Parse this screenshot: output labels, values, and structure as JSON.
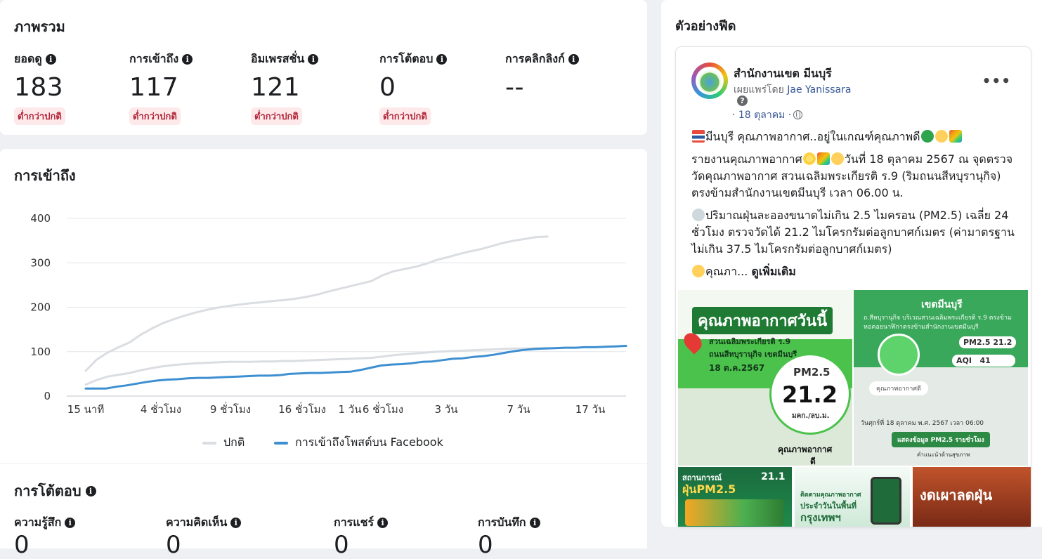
{
  "overview": {
    "title": "ภาพรวม",
    "metrics": [
      {
        "label": "ยอดดู",
        "value": "183",
        "status": "ต่ำกว่าปกติ"
      },
      {
        "label": "การเข้าถึง",
        "value": "117",
        "status": "ต่ำกว่าปกติ"
      },
      {
        "label": "อิมเพรสชั่น",
        "value": "121",
        "status": "ต่ำกว่าปกติ"
      },
      {
        "label": "การโต้ตอบ",
        "value": "0",
        "status": "ต่ำกว่าปกติ"
      },
      {
        "label": "การคลิกลิงก์",
        "value": "--",
        "status": ""
      }
    ]
  },
  "reach": {
    "title": "การเข้าถึง"
  },
  "chart_data": {
    "type": "line",
    "title": "",
    "xlabel": "",
    "ylabel": "",
    "ylim": [
      0,
      400
    ],
    "yticks": [
      0,
      100,
      200,
      300,
      400
    ],
    "x_tick_labels": [
      "15 นาที",
      "4 ชั่วโมง",
      "9 ชั่วโมง",
      "16 ชั่วโมง",
      "1 วัน",
      "6 ชั่วโมง",
      "3 วัน",
      "7 วัน",
      "17 วัน"
    ],
    "grid": true,
    "legend_position": "bottom-center",
    "series": [
      {
        "name": "ปกติ",
        "color": "#dadde1",
        "values": [
          57,
          82,
          98,
          110,
          121,
          138,
          152,
          164,
          173,
          181,
          188,
          194,
          199,
          203,
          206,
          209,
          211,
          214,
          216,
          219,
          223,
          228,
          235,
          241,
          247,
          253,
          259,
          272,
          281,
          286,
          291,
          298,
          307,
          313,
          320,
          326,
          331,
          338,
          345,
          350,
          354,
          358,
          359
        ]
      },
      {
        "name": "ปกติ",
        "color": "#dadde1",
        "values": [
          26,
          36,
          44,
          48,
          52,
          58,
          63,
          67,
          70,
          72,
          74,
          75,
          76,
          77,
          77,
          77,
          78,
          78,
          79,
          79,
          80,
          81,
          82,
          83,
          84,
          85,
          86,
          89,
          92,
          94,
          96,
          98,
          100,
          101,
          102,
          103,
          104,
          105,
          106,
          107,
          107,
          108,
          108
        ]
      },
      {
        "name": "การเข้าถึงโพสต์บน Facebook",
        "color": "#3d8fd1",
        "values": [
          17,
          17,
          17,
          21,
          24,
          28,
          32,
          35,
          37,
          38,
          40,
          41,
          41,
          42,
          43,
          44,
          45,
          46,
          46,
          47,
          50,
          51,
          52,
          52,
          53,
          54,
          55,
          59,
          64,
          69,
          71,
          72,
          74,
          77,
          78,
          81,
          84,
          85,
          88,
          90,
          93,
          97,
          101,
          104,
          106,
          107,
          108,
          109,
          109,
          110,
          110,
          111,
          112,
          113
        ]
      }
    ]
  },
  "legend": {
    "normal": "ปกติ",
    "facebook": "การเข้าถึงโพสต์บน Facebook"
  },
  "interactions": {
    "title": "การโต้ตอบ",
    "metrics": [
      {
        "label": "ความรู้สึก",
        "value": "0"
      },
      {
        "label": "ความคิดเห็น",
        "value": "0"
      },
      {
        "label": "การแชร์",
        "value": "0"
      },
      {
        "label": "การบันทึก",
        "value": "0"
      }
    ]
  },
  "feed": {
    "title": "ตัวอย่างฟีด",
    "page_name": "สำนักงานเขต มีนบุรี",
    "published_prefix": "เผยแพร่โดย",
    "published_by": "Jae Yanissara",
    "date": "· 18 ตุลาคม ·",
    "line1": "มีนบุรี คุณภาพอากาศ..อยู่ในเกณฑ์คุณภาพดี",
    "line2_a": "รายงานคุณภาพอากาศ",
    "line2_b": "วันที่ 18 ตุลาคม 2567 ณ จุดตรวจวัดคุณภาพอากาศ สวนเฉลิมพระเกียรติ ร.9 (ริมถนนสีหบุรานุกิจ) ตรงข้ามสำนักงานเขตมีนบุรี เวลา 06.00 น.",
    "line3": "ปริมาณฝุ่นละอองขนาดไม่เกิน 2.5 ไมครอน (PM2.5) เฉลี่ย 24 ชั่วโมง ตรวจวัดได้ 21.2 ไมโครกรัมต่อลูกบาศก์เมตร (ค่ามาตรฐานไม่เกิน 37.5 ไมโครกรัมต่อลูกบาศก์เมตร)",
    "line4": "คุณภา...",
    "see_more": "ดูเพิ่มเติม",
    "img_a": {
      "heading": "คุณภาพอากาศวันนี้",
      "location1": "สวนเฉลิมพระเกียรติ ร.9",
      "location2": "ถนนสีหบุรานุกิจ เขตมีนบุรี",
      "date": "18 ต.ค.2567",
      "pm": "PM2.5",
      "value": "21.2",
      "unit": "มคก./ลบ.ม.",
      "footer": "คุณภาพอากาศ",
      "footer2": "ดี"
    },
    "img_b": {
      "heading": "เขตมีนบุรี",
      "sub": "ถ.สีหบุรานุกิจ บริเวณสวนเฉลิมพระเกียรติ ร.9 ตรงข้ามหอคอยนาฬิกาตรงข้ามสำนักงานเขตมีนบุรี",
      "pm": "PM2.5 21.2",
      "aqi_label": "AQI",
      "aqi": "41",
      "quality": "คุณภาพอากาศดี",
      "date": "วันศุกร์ที่ 18 ตุลาคม พ.ศ. 2567 เวลา 06:00",
      "button": "แสดงข้อมูล PM2.5 รายชั่วโมง",
      "advice": "คำแนะนำด้านสุขภาพ"
    },
    "img_c": {
      "line1": "สถานการณ์",
      "line2": "ฝุ่นPM2.5",
      "val": "21.1"
    },
    "img_d": {
      "line1": "ติดตามคุณภาพอากาศ",
      "line2": "ประจำวันในพื้นที่",
      "line3": "กรุงเทพฯ"
    },
    "img_e": {
      "line1": "งดเผาลดฝุ่น"
    }
  }
}
